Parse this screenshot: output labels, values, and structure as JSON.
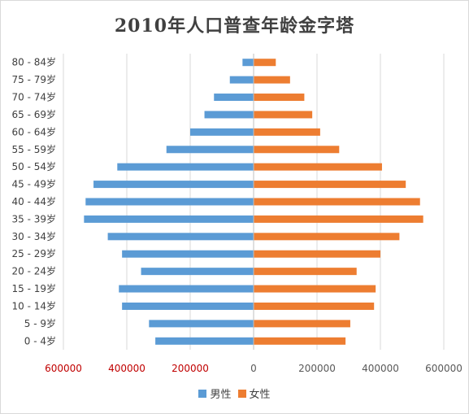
{
  "chart_data": {
    "type": "bar",
    "orientation": "horizontal-population-pyramid",
    "title": "2010年人口普查年龄金字塔",
    "categories": [
      "0 - 4岁",
      "5 - 9岁",
      "10 - 14岁",
      "15 - 19岁",
      "20 - 24岁",
      "25 - 29岁",
      "30 - 34岁",
      "35 - 39岁",
      "40 - 44岁",
      "45 - 49岁",
      "50 - 54岁",
      "55 - 59岁",
      "60 - 64岁",
      "65 - 69岁",
      "70 - 74岁",
      "75 - 79岁",
      "80 - 84岁"
    ],
    "series": [
      {
        "name": "男性",
        "color": "#5b9bd5",
        "values": [
          310000,
          330000,
          415000,
          425000,
          355000,
          415000,
          460000,
          535000,
          530000,
          505000,
          430000,
          275000,
          200000,
          155000,
          125000,
          75000,
          35000
        ]
      },
      {
        "name": "女性",
        "color": "#ed7d31",
        "values": [
          290000,
          305000,
          380000,
          385000,
          325000,
          400000,
          460000,
          535000,
          525000,
          480000,
          405000,
          270000,
          210000,
          185000,
          160000,
          115000,
          70000
        ]
      }
    ],
    "xlim": [
      -600000,
      600000
    ],
    "xticks": [
      {
        "value": -600000,
        "label": "600000",
        "color": "#c00000"
      },
      {
        "value": -400000,
        "label": "400000",
        "color": "#c00000"
      },
      {
        "value": -200000,
        "label": "200000",
        "color": "#c00000"
      },
      {
        "value": 0,
        "label": "0",
        "color": "#595959"
      },
      {
        "value": 200000,
        "label": "200000",
        "color": "#595959"
      },
      {
        "value": 400000,
        "label": "400000",
        "color": "#595959"
      },
      {
        "value": 600000,
        "label": "600000",
        "color": "#595959"
      }
    ],
    "grid": true,
    "legend_position": "bottom"
  }
}
